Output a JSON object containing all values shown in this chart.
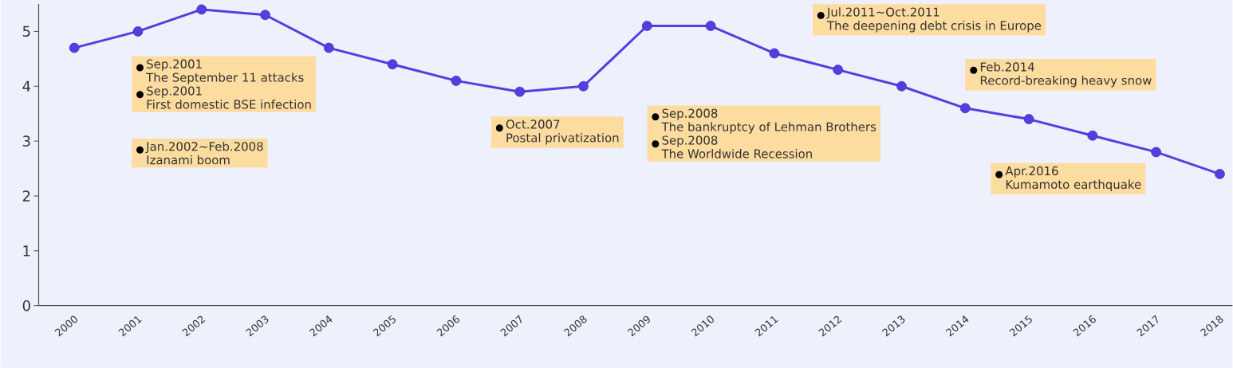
{
  "chart_data": {
    "type": "line",
    "categories": [
      "2000",
      "2001",
      "2002",
      "2003",
      "2004",
      "2005",
      "2006",
      "2007",
      "2008",
      "2009",
      "2010",
      "2011",
      "2012",
      "2013",
      "2014",
      "2015",
      "2016",
      "2017",
      "2018"
    ],
    "series": [
      {
        "color": "#5040e0",
        "values": [
          4.7,
          5.0,
          5.4,
          5.3,
          4.7,
          4.4,
          4.1,
          3.9,
          4.0,
          5.1,
          5.1,
          4.6,
          4.3,
          4.0,
          3.6,
          3.4,
          3.1,
          2.8,
          2.4
        ]
      }
    ],
    "ylim": [
      0,
      5.5
    ],
    "yticks": [
      0,
      1,
      2,
      3,
      4,
      5
    ],
    "marker": "circle",
    "line_style": "solid",
    "annotations": [
      "Sep.2001",
      "The September 11 attacks",
      "Sep.2001",
      "First domestic BSE infection",
      "Jan.2002~Feb.2008",
      "Izanami boom",
      "Oct.2007",
      "Postal privatization",
      "Sep.2008",
      "The bankruptcy of Lehman Brothers",
      "Sep.2008",
      "The Worldwide Recession",
      "Jul.2011~Oct.2011",
      "The deepening debt crisis in Europe",
      "Feb.2014",
      "Record-breaking heavy snow",
      "Apr.2016",
      "Kumamoto earthquake"
    ]
  }
}
